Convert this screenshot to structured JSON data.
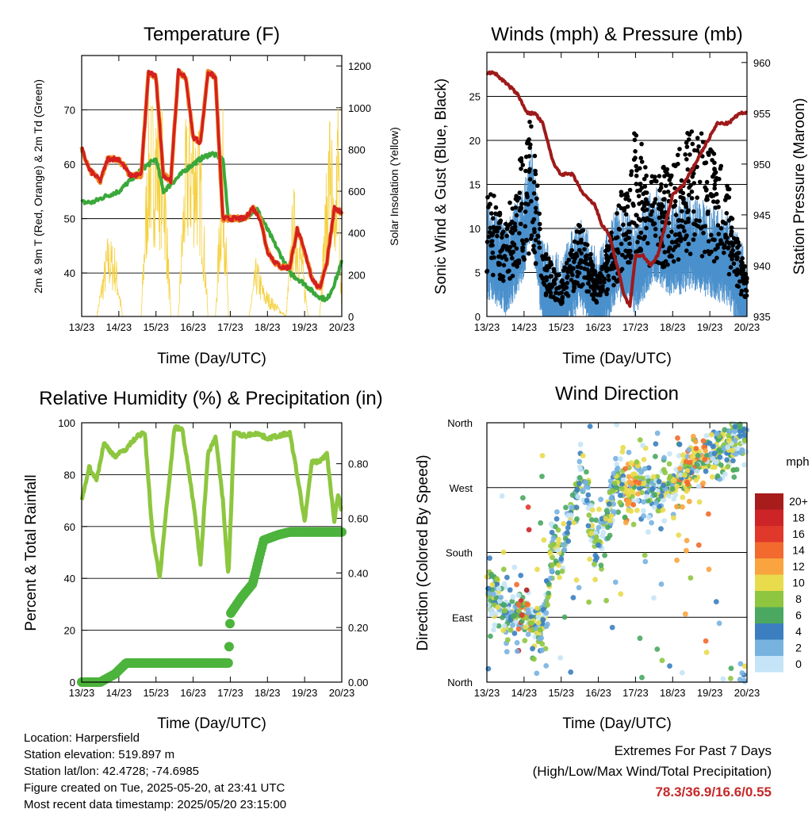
{
  "colors": {
    "temp": "#d42020",
    "temp9": "#f08a24",
    "dew": "#3aa83a",
    "solar": "#f5d142",
    "wind": "#4a90cc",
    "gust": "#000000",
    "pressure": "#9e1a1a",
    "rh": "#8dc63f",
    "precip": "#4cb33c"
  },
  "time_ticks": [
    "13/23",
    "14/23",
    "15/23",
    "16/23",
    "17/23",
    "18/23",
    "19/23",
    "20/23"
  ],
  "xlabel": "Time (Day/UTC)",
  "panels": {
    "temperature": {
      "title": "Temperature (F)",
      "ylabel_left": "2m & 9m T (Red, Orange) & 2m Td (Green)",
      "ylabel_right": "Solar Insolation (Yellow)",
      "left_ticks": [
        "40",
        "50",
        "60",
        "70"
      ],
      "right_ticks": [
        "0",
        "200",
        "400",
        "600",
        "800",
        "1000",
        "1200"
      ]
    },
    "winds": {
      "title": "Winds (mph) & Pressure (mb)",
      "ylabel_left": "Sonic Wind & Gust (Blue, Black)",
      "ylabel_right": "Station Pressure (Maroon)",
      "left_ticks": [
        "0",
        "5",
        "10",
        "15",
        "20",
        "25"
      ],
      "right_ticks": [
        "935",
        "940",
        "945",
        "950",
        "955",
        "960"
      ]
    },
    "humidity": {
      "title": "Relative Humidity (%) & Precipitation (in)",
      "ylabel_left": "Percent & Total Rainfall",
      "left_ticks": [
        "0",
        "20",
        "40",
        "60",
        "80",
        "100"
      ],
      "right_ticks": [
        "0.00",
        "0.20",
        "0.40",
        "0.60",
        "0.80"
      ]
    },
    "direction": {
      "title": "Wind Direction",
      "ylabel_left": "Direction (Colored By Speed)",
      "left_ticks": [
        "North",
        "East",
        "South",
        "West",
        "North"
      ],
      "legend_title": "mph",
      "legend_labels": [
        "20+",
        "18",
        "16",
        "14",
        "12",
        "10",
        "8",
        "6",
        "4",
        "2",
        "0"
      ],
      "legend_colors": [
        "#a81c1c",
        "#cc2427",
        "#e0382a",
        "#f26a2e",
        "#f9a43e",
        "#e8dc4c",
        "#8fc640",
        "#4aa860",
        "#3b7fc0",
        "#78b3e0",
        "#c5e4f7"
      ]
    }
  },
  "chart_data": [
    {
      "type": "line",
      "title": "Temperature (F)",
      "xlabel": "Time (Day/UTC)",
      "ylabel": "2m & 9m T (Red, Orange) & 2m Td (Green)",
      "ylabel_right": "Solar Insolation (Yellow)",
      "x_range": [
        0,
        7
      ],
      "ylim": [
        32,
        80
      ],
      "ylim_right": [
        0,
        1250
      ],
      "series": [
        {
          "name": "2m T",
          "color": "#d42020",
          "x": [
            0,
            0.2,
            0.5,
            0.7,
            1.0,
            1.3,
            1.6,
            1.8,
            2.0,
            2.2,
            2.4,
            2.6,
            2.8,
            3.0,
            3.2,
            3.4,
            3.6,
            3.8,
            3.95,
            4.1,
            4.4,
            4.6,
            4.8,
            5.0,
            5.2,
            5.4,
            5.6,
            5.8,
            6.0,
            6.2,
            6.4,
            6.6,
            6.8,
            7.0
          ],
          "y": [
            63,
            59,
            57,
            61,
            61,
            58,
            58,
            77,
            76,
            58,
            57,
            77,
            76,
            65,
            64,
            77,
            76,
            50,
            50,
            50,
            50,
            52,
            50,
            44,
            42,
            41,
            41,
            48,
            44,
            39,
            37,
            42,
            52,
            51
          ]
        },
        {
          "name": "2m Td",
          "color": "#3aa83a",
          "x": [
            0,
            0.3,
            0.6,
            1.0,
            1.3,
            1.6,
            1.8,
            2.0,
            2.2,
            2.5,
            2.8,
            3.0,
            3.2,
            3.5,
            3.8,
            3.95,
            4.1,
            4.4,
            4.7,
            5.0,
            5.3,
            5.6,
            6.0,
            6.3,
            6.6,
            6.8,
            7.0
          ],
          "y": [
            53,
            53,
            54,
            55,
            57,
            59,
            60,
            61,
            55,
            57,
            59,
            60,
            61,
            62,
            61,
            50,
            50,
            50,
            52,
            48,
            44,
            40,
            38,
            36,
            35,
            38,
            42
          ]
        },
        {
          "name": "Solar Insolation",
          "color": "#f5d142",
          "axis": "right",
          "x": [
            0,
            0.4,
            0.7,
            0.9,
            1.1,
            1.6,
            1.8,
            2.0,
            2.2,
            2.4,
            2.6,
            2.8,
            3.0,
            3.2,
            3.4,
            3.6,
            3.8,
            3.95,
            4.5,
            4.7,
            4.9,
            5.5,
            5.7,
            5.9,
            6.1,
            6.4,
            6.7,
            6.8,
            6.9,
            7.0
          ],
          "y": [
            0,
            0,
            400,
            350,
            0,
            0,
            1050,
            1100,
            1000,
            0,
            0,
            950,
            1050,
            900,
            0,
            0,
            1000,
            0,
            0,
            300,
            150,
            0,
            650,
            400,
            0,
            0,
            1150,
            400,
            1150,
            0
          ]
        }
      ]
    },
    {
      "type": "scatter",
      "title": "Winds (mph) & Pressure (mb)",
      "xlabel": "Time (Day/UTC)",
      "ylabel": "Sonic Wind & Gust (Blue, Black)",
      "ylabel_right": "Station Pressure (Maroon)",
      "x_range": [
        0,
        7
      ],
      "ylim": [
        0,
        30
      ],
      "ylim_right": [
        935,
        961
      ],
      "series": [
        {
          "name": "Sonic Wind",
          "color": "#4a90cc",
          "x": [
            0,
            0.5,
            1.0,
            1.2,
            1.5,
            2.0,
            2.5,
            3.0,
            3.5,
            4.0,
            4.5,
            5.0,
            5.5,
            6.0,
            6.5,
            7.0
          ],
          "y": [
            8,
            6,
            10,
            15,
            4,
            2,
            7,
            2,
            8,
            6,
            10,
            8,
            9,
            8,
            7,
            2
          ]
        },
        {
          "name": "Gust",
          "color": "#000000",
          "x": [
            0,
            0.5,
            1.0,
            1.2,
            1.5,
            2.0,
            2.5,
            3.0,
            3.5,
            4.0,
            4.5,
            5.0,
            5.5,
            6.0,
            6.5,
            7.0
          ],
          "y": [
            14,
            10,
            18,
            21,
            7,
            4,
            10,
            4,
            11,
            20,
            15,
            16,
            20,
            18,
            14,
            4
          ]
        },
        {
          "name": "Station Pressure",
          "color": "#9e1a1a",
          "axis": "right",
          "x": [
            0,
            0.2,
            0.5,
            0.8,
            1.1,
            1.3,
            1.5,
            1.8,
            2.0,
            2.3,
            2.6,
            2.9,
            3.1,
            3.3,
            3.5,
            3.7,
            3.85,
            4.0,
            4.2,
            4.4,
            4.6,
            4.8,
            5.0,
            5.3,
            5.6,
            5.9,
            6.2,
            6.5,
            6.8,
            7.0
          ],
          "y": [
            959,
            959,
            958,
            957,
            955,
            955,
            954,
            950,
            949,
            949,
            947,
            946,
            944,
            943,
            940,
            937,
            936,
            941,
            941,
            940,
            941,
            944,
            947,
            948,
            950,
            952,
            954,
            954,
            955,
            955
          ]
        }
      ]
    },
    {
      "type": "line",
      "title": "Relative Humidity (%) & Precipitation (in)",
      "xlabel": "Time (Day/UTC)",
      "ylabel": "Percent & Total Rainfall",
      "x_range": [
        0,
        7
      ],
      "ylim": [
        0,
        100
      ],
      "ylim_right": [
        0,
        0.95
      ],
      "series": [
        {
          "name": "Relative Humidity",
          "color": "#8dc63f",
          "x": [
            0,
            0.2,
            0.4,
            0.6,
            0.9,
            1.2,
            1.5,
            1.7,
            1.9,
            2.1,
            2.3,
            2.5,
            2.7,
            3.0,
            3.2,
            3.4,
            3.6,
            3.8,
            3.95,
            4.1,
            4.4,
            4.7,
            5.0,
            5.3,
            5.6,
            5.8,
            6.0,
            6.2,
            6.4,
            6.6,
            6.8,
            6.9,
            7.0
          ],
          "y": [
            70,
            83,
            78,
            92,
            87,
            90,
            95,
            96,
            58,
            40,
            70,
            98,
            98,
            70,
            46,
            88,
            95,
            70,
            40,
            96,
            95,
            96,
            94,
            95,
            96,
            80,
            62,
            85,
            85,
            88,
            62,
            72,
            66
          ]
        },
        {
          "name": "Total Precipitation",
          "color": "#4cb33c",
          "axis": "right",
          "x": [
            0,
            0.5,
            0.9,
            1.2,
            1.5,
            2.0,
            3.0,
            3.95,
            4.0,
            4.3,
            4.6,
            4.9,
            5.3,
            5.6,
            6.0,
            7.0
          ],
          "y": [
            0,
            0,
            0.03,
            0.07,
            0.07,
            0.07,
            0.07,
            0.07,
            0.25,
            0.31,
            0.36,
            0.52,
            0.54,
            0.55,
            0.55,
            0.55
          ]
        }
      ]
    },
    {
      "type": "scatter",
      "title": "Wind Direction",
      "xlabel": "Time (Day/UTC)",
      "ylabel": "Direction (Colored By Speed)",
      "x_range": [
        0,
        7
      ],
      "ylim": [
        0,
        360
      ],
      "y_tick_labels": [
        "North",
        "East",
        "South",
        "West",
        "North"
      ],
      "series": [
        {
          "name": "Direction",
          "x": [
            0,
            0.3,
            0.6,
            0.9,
            1.2,
            1.5,
            1.8,
            2.0,
            2.3,
            2.6,
            2.9,
            3.2,
            3.5,
            3.8,
            4.1,
            4.4,
            4.7,
            5.0,
            5.3,
            5.6,
            5.9,
            6.2,
            6.5,
            6.8,
            7.0
          ],
          "y": [
            130,
            110,
            90,
            95,
            80,
            60,
            200,
            170,
            240,
            300,
            190,
            220,
            290,
            260,
            280,
            270,
            265,
            280,
            290,
            300,
            310,
            320,
            330,
            340,
            345
          ]
        }
      ]
    }
  ],
  "info": {
    "location": "Location: Harpersfield",
    "elevation": "Station elevation: 519.897 m",
    "latlon": "Station lat/lon: 42.4728; -74.6985",
    "created": "Figure created on Tue, 2025-05-20, at 23:41 UTC",
    "recent": "Most recent data timestamp: 2025/05/20 23:15:00"
  },
  "extremes": {
    "heading": "Extremes For Past 7 Days",
    "subheading": "(High/Low/Max Wind/Total Precipitation)",
    "values": "78.3/36.9/16.6/0.55"
  }
}
